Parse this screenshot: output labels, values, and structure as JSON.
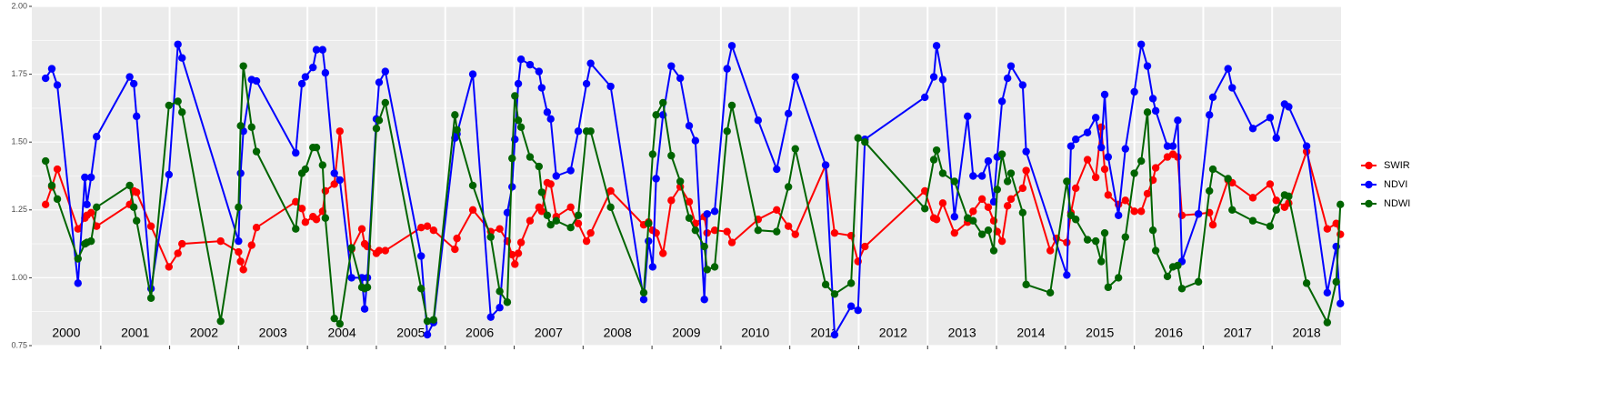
{
  "chart_data": {
    "type": "line",
    "legend": "right",
    "grid": true,
    "xlim": [
      2000,
      2019
    ],
    "ylim": [
      0.75,
      2.0
    ],
    "xticks": [
      2001,
      2002,
      2003,
      2004,
      2005,
      2006,
      2007,
      2008,
      2009,
      2010,
      2011,
      2012,
      2013,
      2014,
      2015,
      2016,
      2017,
      2018
    ],
    "yticks": [
      {
        "value": 0.75,
        "label": "0.75"
      },
      {
        "value": 1.0,
        "label": "1.00"
      },
      {
        "value": 1.25,
        "label": "1.25"
      },
      {
        "value": 1.5,
        "label": "1.50"
      },
      {
        "value": 1.75,
        "label": "1.75"
      },
      {
        "value": 2.0,
        "label": "2.00"
      }
    ],
    "year_labels": [
      "2000",
      "2001",
      "2002",
      "2003",
      "2004",
      "2005",
      "2006",
      "2007",
      "2008",
      "2009",
      "2010",
      "2011",
      "2012",
      "2013",
      "2014",
      "2015",
      "2016",
      "2017",
      "2018"
    ],
    "series": [
      {
        "name": "SWIR",
        "color": "#ff0000",
        "x": [
          2000.2,
          2000.29,
          2000.37,
          2000.67,
          2000.77,
          2000.8,
          2000.86,
          2000.94,
          2001.42,
          2001.48,
          2001.52,
          2001.73,
          2001.99,
          2002.12,
          2002.18,
          2002.74,
          2003.0,
          2003.03,
          2003.07,
          2003.19,
          2003.26,
          2003.83,
          2003.92,
          2003.97,
          2004.08,
          2004.13,
          2004.22,
          2004.26,
          2004.39,
          2004.47,
          2004.64,
          2004.79,
          2004.83,
          2004.87,
          2005.0,
          2005.04,
          2005.13,
          2005.65,
          2005.74,
          2005.83,
          2006.14,
          2006.17,
          2006.4,
          2006.66,
          2006.79,
          2006.9,
          2006.97,
          2007.01,
          2007.06,
          2007.1,
          2007.23,
          2007.36,
          2007.4,
          2007.48,
          2007.53,
          2007.61,
          2007.82,
          2007.93,
          2008.05,
          2008.11,
          2008.4,
          2008.88,
          2008.95,
          2009.01,
          2009.06,
          2009.16,
          2009.28,
          2009.41,
          2009.54,
          2009.63,
          2009.76,
          2009.8,
          2009.91,
          2010.09,
          2010.16,
          2010.54,
          2010.81,
          2010.98,
          2011.08,
          2011.52,
          2011.65,
          2011.89,
          2011.99,
          2012.09,
          2012.96,
          2013.09,
          2013.13,
          2013.22,
          2013.39,
          2013.58,
          2013.66,
          2013.79,
          2013.88,
          2013.96,
          2014.01,
          2014.08,
          2014.16,
          2014.21,
          2014.38,
          2014.43,
          2014.78,
          2014.87,
          2015.02,
          2015.08,
          2015.15,
          2015.32,
          2015.44,
          2015.52,
          2015.57,
          2015.62,
          2015.77,
          2015.87,
          2016.0,
          2016.1,
          2016.19,
          2016.27,
          2016.31,
          2016.48,
          2016.56,
          2016.63,
          2016.69,
          2016.93,
          2017.09,
          2017.14,
          2017.36,
          2017.42,
          2017.72,
          2017.97,
          2018.06,
          2018.18,
          2018.24,
          2018.5,
          2018.8,
          2018.93,
          2018.99
        ],
        "values": [
          1.27,
          1.335,
          1.4,
          1.18,
          1.22,
          1.23,
          1.24,
          1.19,
          1.27,
          1.32,
          1.315,
          1.19,
          1.04,
          1.09,
          1.125,
          1.135,
          1.095,
          1.06,
          1.03,
          1.12,
          1.185,
          1.28,
          1.255,
          1.205,
          1.225,
          1.215,
          1.245,
          1.32,
          1.345,
          1.54,
          1.105,
          1.18,
          1.125,
          1.115,
          1.09,
          1.1,
          1.1,
          1.185,
          1.19,
          1.175,
          1.105,
          1.145,
          1.25,
          1.17,
          1.18,
          1.135,
          1.085,
          1.05,
          1.09,
          1.13,
          1.21,
          1.26,
          1.245,
          1.35,
          1.345,
          1.225,
          1.26,
          1.2,
          1.135,
          1.165,
          1.32,
          1.195,
          1.205,
          1.175,
          1.165,
          1.09,
          1.285,
          1.335,
          1.28,
          1.2,
          1.225,
          1.165,
          1.175,
          1.17,
          1.13,
          1.215,
          1.25,
          1.19,
          1.16,
          1.415,
          1.165,
          1.155,
          1.06,
          1.115,
          1.32,
          1.22,
          1.215,
          1.275,
          1.165,
          1.205,
          1.245,
          1.29,
          1.26,
          1.21,
          1.17,
          1.135,
          1.265,
          1.29,
          1.33,
          1.395,
          1.1,
          1.145,
          1.13,
          1.24,
          1.33,
          1.435,
          1.37,
          1.555,
          1.4,
          1.305,
          1.27,
          1.285,
          1.245,
          1.245,
          1.31,
          1.36,
          1.405,
          1.445,
          1.455,
          1.445,
          1.23,
          1.235,
          1.24,
          1.195,
          1.36,
          1.35,
          1.295,
          1.345,
          1.285,
          1.26,
          1.275,
          1.465,
          1.18,
          1.2,
          1.16
        ]
      },
      {
        "name": "NDVI",
        "color": "#0000ff",
        "x": [
          2000.2,
          2000.29,
          2000.37,
          2000.67,
          2000.77,
          2000.8,
          2000.86,
          2000.94,
          2001.42,
          2001.48,
          2001.52,
          2001.73,
          2001.99,
          2002.12,
          2002.18,
          2003.0,
          2003.03,
          2003.07,
          2003.19,
          2003.26,
          2003.83,
          2003.92,
          2003.97,
          2004.08,
          2004.13,
          2004.22,
          2004.26,
          2004.39,
          2004.47,
          2004.64,
          2004.79,
          2004.83,
          2004.87,
          2005.0,
          2005.04,
          2005.13,
          2005.65,
          2005.74,
          2005.83,
          2006.14,
          2006.17,
          2006.4,
          2006.66,
          2006.79,
          2006.9,
          2006.97,
          2007.01,
          2007.06,
          2007.1,
          2007.23,
          2007.36,
          2007.4,
          2007.48,
          2007.53,
          2007.61,
          2007.82,
          2007.93,
          2008.05,
          2008.11,
          2008.4,
          2008.88,
          2008.95,
          2009.01,
          2009.06,
          2009.16,
          2009.28,
          2009.41,
          2009.54,
          2009.63,
          2009.76,
          2009.8,
          2009.91,
          2010.09,
          2010.16,
          2010.54,
          2010.81,
          2010.98,
          2011.08,
          2011.52,
          2011.65,
          2011.89,
          2011.99,
          2012.09,
          2012.96,
          2013.09,
          2013.13,
          2013.22,
          2013.39,
          2013.58,
          2013.66,
          2013.79,
          2013.88,
          2013.96,
          2014.01,
          2014.08,
          2014.16,
          2014.21,
          2014.38,
          2014.43,
          2015.02,
          2015.08,
          2015.15,
          2015.32,
          2015.44,
          2015.52,
          2015.57,
          2015.62,
          2015.77,
          2015.87,
          2016.0,
          2016.1,
          2016.19,
          2016.27,
          2016.31,
          2016.48,
          2016.56,
          2016.63,
          2016.69,
          2016.93,
          2017.09,
          2017.14,
          2017.36,
          2017.42,
          2017.72,
          2017.97,
          2018.06,
          2018.18,
          2018.24,
          2018.5,
          2018.8,
          2018.93,
          2018.99
        ],
        "values": [
          1.735,
          1.77,
          1.71,
          0.98,
          1.37,
          1.27,
          1.37,
          1.52,
          1.74,
          1.715,
          1.595,
          0.96,
          1.38,
          1.86,
          1.81,
          1.135,
          1.385,
          1.54,
          1.73,
          1.725,
          1.46,
          1.715,
          1.74,
          1.775,
          1.84,
          1.84,
          1.755,
          1.385,
          1.36,
          1.0,
          1.0,
          0.885,
          1.0,
          1.585,
          1.72,
          1.76,
          1.08,
          0.79,
          0.835,
          1.515,
          1.53,
          1.75,
          0.855,
          0.89,
          1.24,
          1.335,
          1.51,
          1.715,
          1.805,
          1.785,
          1.76,
          1.7,
          1.61,
          1.585,
          1.375,
          1.395,
          1.54,
          1.715,
          1.79,
          1.705,
          0.92,
          1.135,
          1.04,
          1.365,
          1.6,
          1.78,
          1.735,
          1.56,
          1.505,
          0.92,
          1.235,
          1.245,
          1.77,
          1.855,
          1.58,
          1.4,
          1.605,
          1.74,
          1.415,
          0.79,
          0.895,
          0.88,
          1.51,
          1.665,
          1.74,
          1.855,
          1.73,
          1.225,
          1.595,
          1.375,
          1.375,
          1.43,
          1.28,
          1.445,
          1.65,
          1.735,
          1.78,
          1.71,
          1.465,
          1.01,
          1.485,
          1.51,
          1.535,
          1.59,
          1.48,
          1.675,
          1.445,
          1.23,
          1.475,
          1.685,
          1.86,
          1.78,
          1.66,
          1.615,
          1.485,
          1.485,
          1.58,
          1.06,
          1.235,
          1.6,
          1.665,
          1.77,
          1.7,
          1.55,
          1.59,
          1.515,
          1.64,
          1.63,
          1.485,
          0.945,
          1.115,
          0.905
        ]
      },
      {
        "name": "NDWI",
        "color": "#006400",
        "x": [
          2000.2,
          2000.29,
          2000.37,
          2000.67,
          2000.77,
          2000.8,
          2000.86,
          2000.94,
          2001.42,
          2001.48,
          2001.52,
          2001.73,
          2001.99,
          2002.12,
          2002.18,
          2002.74,
          2003.0,
          2003.03,
          2003.07,
          2003.19,
          2003.26,
          2003.83,
          2003.92,
          2003.97,
          2004.08,
          2004.13,
          2004.22,
          2004.26,
          2004.39,
          2004.47,
          2004.64,
          2004.79,
          2004.83,
          2004.87,
          2005.0,
          2005.04,
          2005.13,
          2005.65,
          2005.74,
          2005.83,
          2006.14,
          2006.17,
          2006.4,
          2006.66,
          2006.79,
          2006.9,
          2006.97,
          2007.01,
          2007.06,
          2007.1,
          2007.23,
          2007.36,
          2007.4,
          2007.48,
          2007.53,
          2007.61,
          2007.82,
          2007.93,
          2008.05,
          2008.11,
          2008.4,
          2008.88,
          2008.95,
          2009.01,
          2009.06,
          2009.16,
          2009.28,
          2009.41,
          2009.54,
          2009.63,
          2009.76,
          2009.8,
          2009.91,
          2010.09,
          2010.16,
          2010.54,
          2010.81,
          2010.98,
          2011.08,
          2011.52,
          2011.65,
          2011.89,
          2011.99,
          2012.09,
          2012.96,
          2013.09,
          2013.13,
          2013.22,
          2013.39,
          2013.58,
          2013.66,
          2013.79,
          2013.88,
          2013.96,
          2014.01,
          2014.08,
          2014.16,
          2014.21,
          2014.38,
          2014.43,
          2014.78,
          2015.02,
          2015.08,
          2015.15,
          2015.32,
          2015.44,
          2015.52,
          2015.57,
          2015.62,
          2015.77,
          2015.87,
          2016.0,
          2016.1,
          2016.19,
          2016.27,
          2016.31,
          2016.48,
          2016.56,
          2016.63,
          2016.69,
          2016.93,
          2017.09,
          2017.14,
          2017.36,
          2017.42,
          2017.72,
          2017.97,
          2018.06,
          2018.18,
          2018.24,
          2018.5,
          2018.8,
          2018.93,
          2018.99
        ],
        "values": [
          1.43,
          1.34,
          1.29,
          1.07,
          1.125,
          1.13,
          1.135,
          1.26,
          1.34,
          1.26,
          1.21,
          0.925,
          1.635,
          1.65,
          1.61,
          0.84,
          1.26,
          1.56,
          1.78,
          1.555,
          1.465,
          1.18,
          1.385,
          1.4,
          1.48,
          1.48,
          1.415,
          1.22,
          0.85,
          0.83,
          1.11,
          0.965,
          0.96,
          0.965,
          1.55,
          1.58,
          1.645,
          0.96,
          0.84,
          0.845,
          1.6,
          1.545,
          1.34,
          1.15,
          0.95,
          0.91,
          1.44,
          1.67,
          1.58,
          1.555,
          1.445,
          1.41,
          1.315,
          1.23,
          1.195,
          1.21,
          1.185,
          1.23,
          1.54,
          1.54,
          1.26,
          0.945,
          1.2,
          1.455,
          1.6,
          1.645,
          1.45,
          1.355,
          1.22,
          1.175,
          1.115,
          1.03,
          1.04,
          1.54,
          1.635,
          1.175,
          1.17,
          1.335,
          1.475,
          0.975,
          0.94,
          0.98,
          1.515,
          1.5,
          1.255,
          1.435,
          1.47,
          1.385,
          1.355,
          1.22,
          1.21,
          1.16,
          1.175,
          1.1,
          1.325,
          1.455,
          1.355,
          1.385,
          1.24,
          0.975,
          0.945,
          1.355,
          1.23,
          1.215,
          1.14,
          1.135,
          1.06,
          1.165,
          0.965,
          1.0,
          1.15,
          1.385,
          1.43,
          1.61,
          1.175,
          1.1,
          1.005,
          1.04,
          1.045,
          0.96,
          0.985,
          1.32,
          1.4,
          1.365,
          1.25,
          1.21,
          1.19,
          1.25,
          1.305,
          1.3,
          0.98,
          0.835,
          0.985,
          1.27
        ]
      }
    ]
  }
}
